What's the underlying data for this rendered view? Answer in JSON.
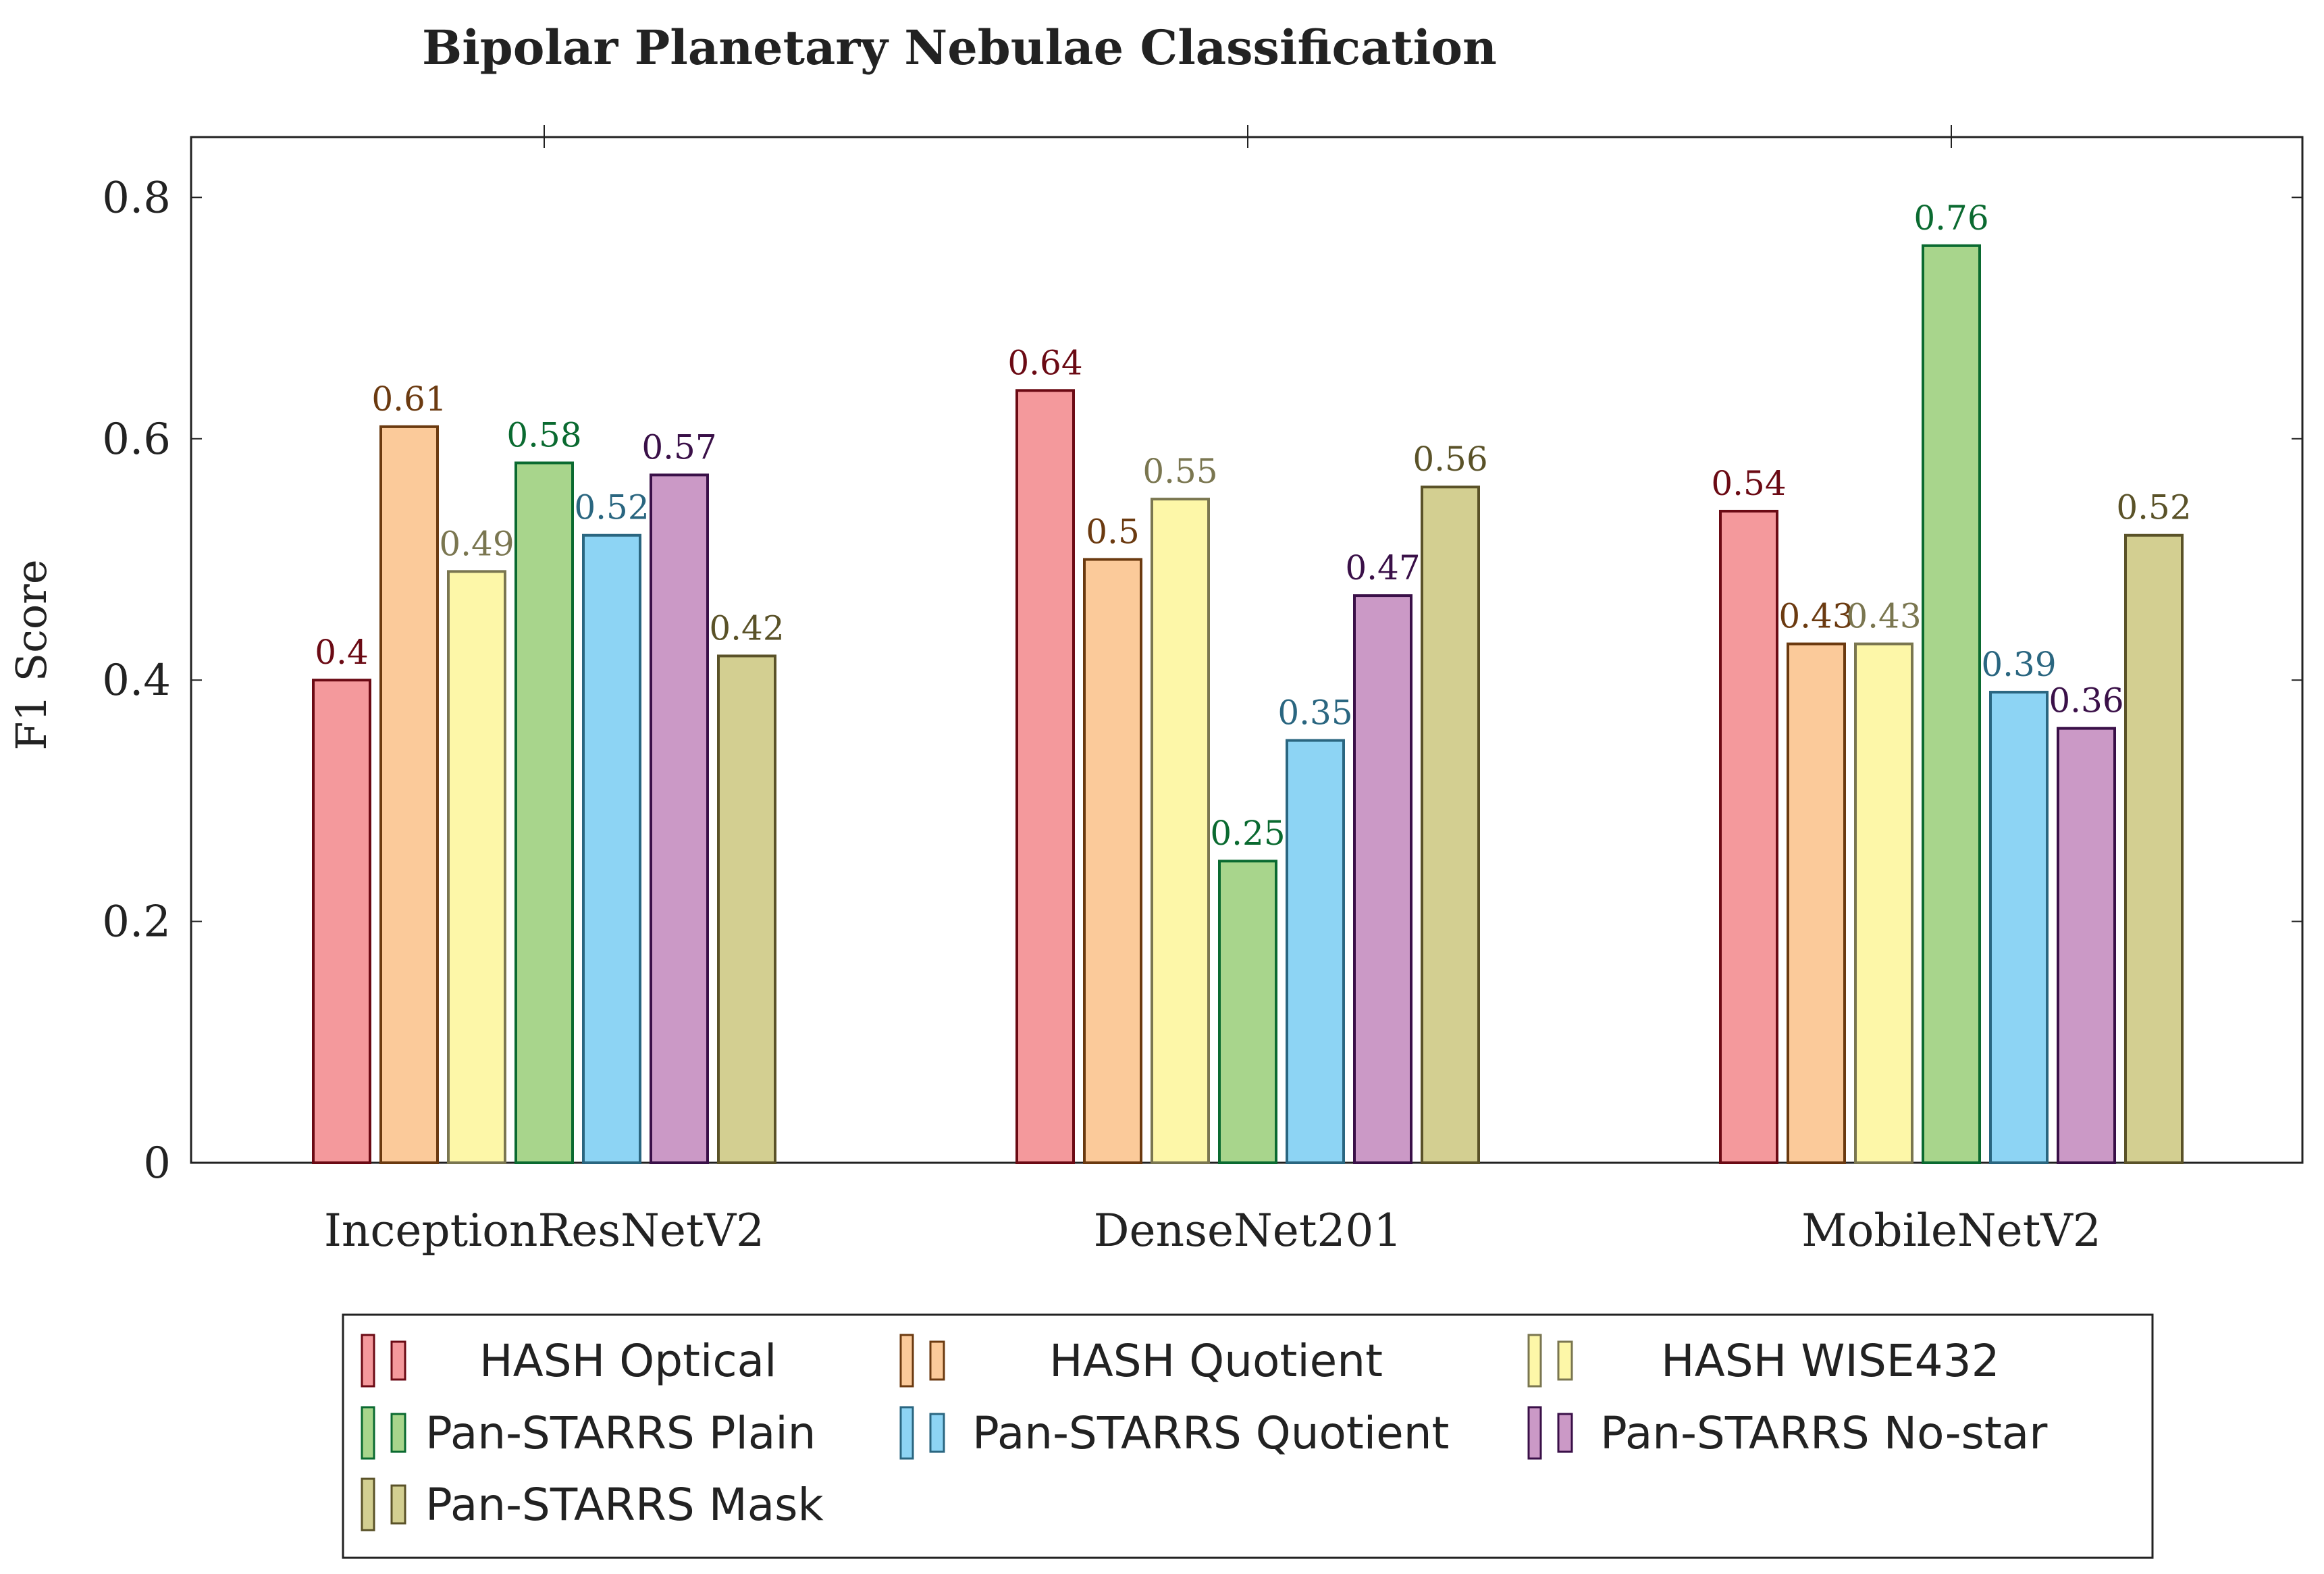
{
  "chart_data": {
    "type": "bar",
    "title": "Bipolar Planetary Nebulae Classification",
    "xlabel": "",
    "ylabel": "F1 Score",
    "ylim": [
      0,
      0.85
    ],
    "yticks": [
      0,
      0.2,
      0.4,
      0.6,
      0.8
    ],
    "ytick_labels": [
      "0",
      "0.2",
      "0.4",
      "0.6",
      "0.8"
    ],
    "categories": [
      "InceptionResNetV2",
      "DenseNet201",
      "MobileNetV2"
    ],
    "grid": false,
    "legend_position": "bottom",
    "series": [
      {
        "name": "HASH Optical",
        "values": [
          0.4,
          0.64,
          0.54
        ],
        "labels": [
          "0.4",
          "0.64",
          "0.54"
        ],
        "fill": "#f4999c",
        "stroke": "#6b0a14"
      },
      {
        "name": "HASH Quotient",
        "values": [
          0.61,
          0.5,
          0.43
        ],
        "labels": [
          "0.61",
          "0.5",
          "0.43"
        ],
        "fill": "#fbca9a",
        "stroke": "#6b3a10"
      },
      {
        "name": "HASH WISE432",
        "values": [
          0.49,
          0.55,
          0.43
        ],
        "labels": [
          "0.49",
          "0.55",
          "0.43"
        ],
        "fill": "#fdf7a8",
        "stroke": "#7a7650"
      },
      {
        "name": "Pan-STARRS Plain",
        "values": [
          0.58,
          0.25,
          0.76
        ],
        "labels": [
          "0.58",
          "0.25",
          "0.76"
        ],
        "fill": "#a8d58c",
        "stroke": "#0a6a30"
      },
      {
        "name": "Pan-STARRS Quotient",
        "values": [
          0.52,
          0.35,
          0.39
        ],
        "labels": [
          "0.52",
          "0.35",
          "0.39"
        ],
        "fill": "#8dd4f4",
        "stroke": "#2a6680"
      },
      {
        "name": "Pan-STARRS No-star",
        "values": [
          0.57,
          0.47,
          0.36
        ],
        "labels": [
          "0.57",
          "0.47",
          "0.36"
        ],
        "fill": "#cb99c6",
        "stroke": "#3a1048"
      },
      {
        "name": "Pan-STARRS Mask",
        "values": [
          0.42,
          0.56,
          0.52
        ],
        "labels": [
          "0.42",
          "0.56",
          "0.52"
        ],
        "fill": "#d3cf91",
        "stroke": "#5a5228"
      }
    ]
  }
}
